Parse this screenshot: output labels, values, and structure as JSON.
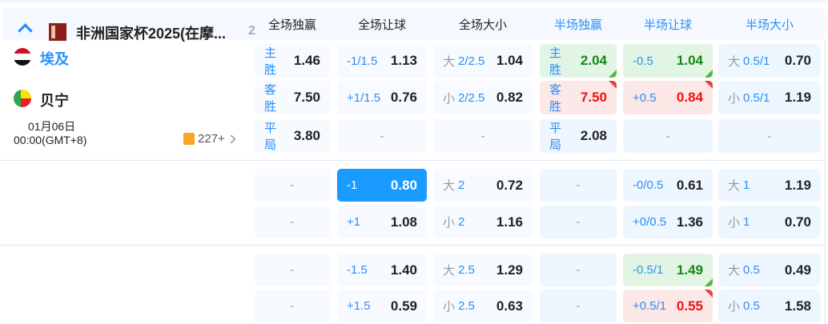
{
  "league": {
    "name": "非洲国家杯2025(在摩...",
    "count": "2"
  },
  "columns": [
    {
      "label": "全场独赢",
      "half": false
    },
    {
      "label": "全场让球",
      "half": false
    },
    {
      "label": "全场大小",
      "half": false
    },
    {
      "label": "半场独赢",
      "half": true
    },
    {
      "label": "半场让球",
      "half": true
    },
    {
      "label": "半场大小",
      "half": true
    }
  ],
  "match": {
    "home": "埃及",
    "away": "贝宁",
    "date": "01月06日",
    "time": "00:00(GMT+8)",
    "markets": "227+",
    "home_color": "#2a8ff7"
  },
  "sections": [
    {
      "rows": [
        [
          {
            "line": "主胜",
            "odds": "1.46"
          },
          {
            "line": "-1/1.5",
            "odds": "1.13"
          },
          {
            "pre": "大",
            "line": "2/2.5",
            "odds": "1.04"
          },
          {
            "line": "主胜",
            "odds": "2.04",
            "state": "up"
          },
          {
            "line": "-0.5",
            "odds": "1.04",
            "state": "up"
          },
          {
            "pre": "大",
            "line": "0.5/1",
            "odds": "0.70"
          }
        ],
        [
          {
            "line": "客胜",
            "odds": "7.50"
          },
          {
            "line": "+1/1.5",
            "odds": "0.76"
          },
          {
            "pre": "小",
            "line": "2/2.5",
            "odds": "0.82"
          },
          {
            "line": "客胜",
            "odds": "7.50",
            "state": "down"
          },
          {
            "line": "+0.5",
            "odds": "0.84",
            "state": "down"
          },
          {
            "pre": "小",
            "line": "0.5/1",
            "odds": "1.19"
          }
        ],
        [
          {
            "line": "平局",
            "odds": "3.80"
          },
          {
            "dash": "-"
          },
          {
            "dash": "-"
          },
          {
            "line": "平局",
            "odds": "2.08"
          },
          {
            "dash": "-"
          },
          {
            "dash": "-"
          }
        ]
      ]
    },
    {
      "rows": [
        [
          {
            "dash": "-"
          },
          {
            "line": "-1",
            "odds": "0.80",
            "state": "selected"
          },
          {
            "pre": "大",
            "line": "2",
            "odds": "0.72"
          },
          {
            "dash": "-"
          },
          {
            "line": "-0/0.5",
            "odds": "0.61"
          },
          {
            "pre": "大",
            "line": "1",
            "odds": "1.19"
          }
        ],
        [
          {
            "dash": "-"
          },
          {
            "line": "+1",
            "odds": "1.08"
          },
          {
            "pre": "小",
            "line": "2",
            "odds": "1.16"
          },
          {
            "dash": "-"
          },
          {
            "line": "+0/0.5",
            "odds": "1.36"
          },
          {
            "pre": "小",
            "line": "1",
            "odds": "0.70"
          }
        ]
      ]
    },
    {
      "rows": [
        [
          {
            "dash": "-"
          },
          {
            "line": "-1.5",
            "odds": "1.40"
          },
          {
            "pre": "大",
            "line": "2.5",
            "odds": "1.29"
          },
          {
            "dash": "-"
          },
          {
            "line": "-0.5/1",
            "odds": "1.49",
            "state": "up"
          },
          {
            "pre": "大",
            "line": "0.5",
            "odds": "0.49"
          }
        ],
        [
          {
            "dash": "-"
          },
          {
            "line": "+1.5",
            "odds": "0.59"
          },
          {
            "pre": "小",
            "line": "2.5",
            "odds": "0.63"
          },
          {
            "dash": "-"
          },
          {
            "line": "+0.5/1",
            "odds": "0.55",
            "state": "down"
          },
          {
            "pre": "小",
            "line": "0.5",
            "odds": "1.58"
          }
        ]
      ]
    }
  ]
}
